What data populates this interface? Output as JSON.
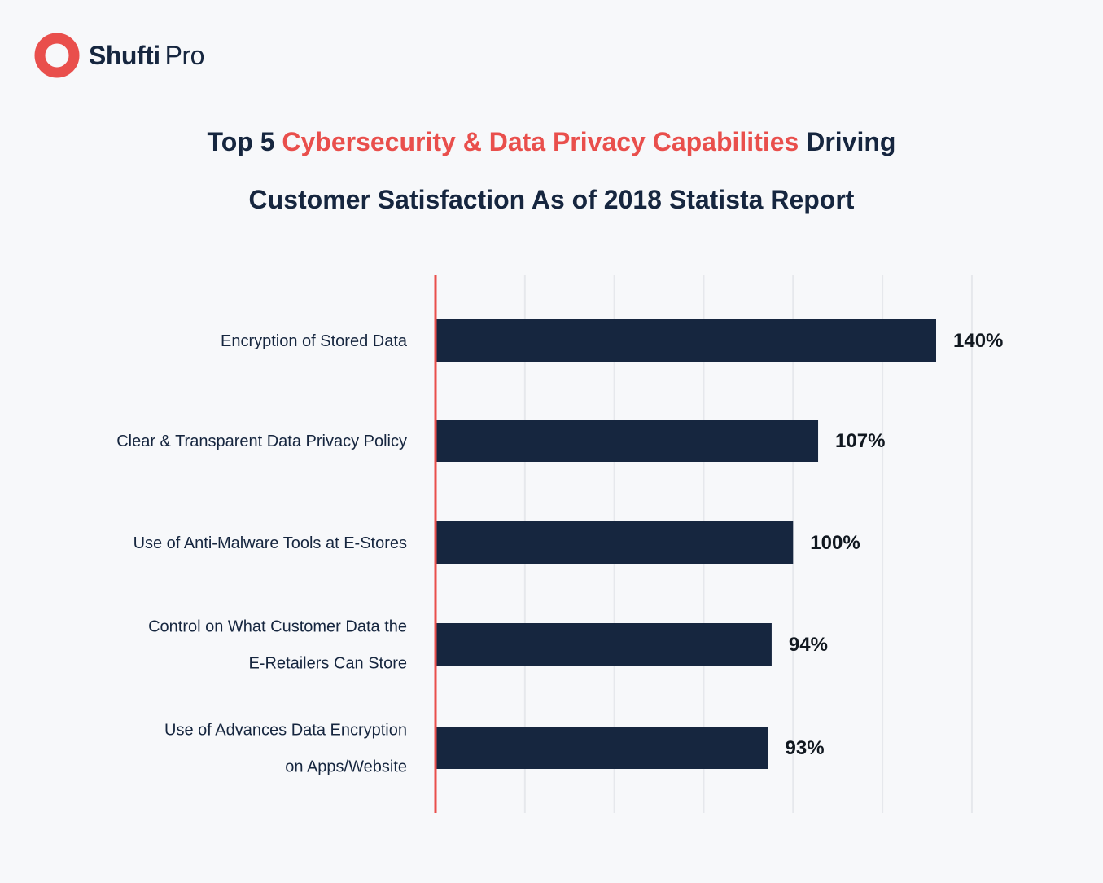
{
  "brand": {
    "name_bold": "Shufti",
    "name_light": "Pro",
    "accent_color": "#e94f4c",
    "text_color": "#16263f"
  },
  "title": {
    "line1_prefix": "Top 5 ",
    "line1_highlight": "Cybersecurity & Data Privacy Capabilities",
    "line1_suffix": " Driving",
    "line2": "Customer Satisfaction As of 2018 Statista Report"
  },
  "chart_data": {
    "type": "bar",
    "orientation": "horizontal",
    "categories": [
      [
        "Encryption of Stored Data"
      ],
      [
        "Clear & Transparent Data Privacy Policy"
      ],
      [
        "Use of Anti-Malware Tools at E-Stores"
      ],
      [
        "Control on What Customer Data the",
        "E-Retailers Can Store"
      ],
      [
        "Use of Advances Data Encryption",
        "on Apps/Website"
      ]
    ],
    "values": [
      140,
      107,
      100,
      94,
      93
    ],
    "value_labels": [
      "140%",
      "107%",
      "100%",
      "94%",
      "93%"
    ],
    "xlim": [
      0,
      150
    ],
    "grid": true,
    "bar_color": "#16263f",
    "axis_color": "#e94f4c",
    "grid_color": "#e6e8ec",
    "legend": "none"
  }
}
